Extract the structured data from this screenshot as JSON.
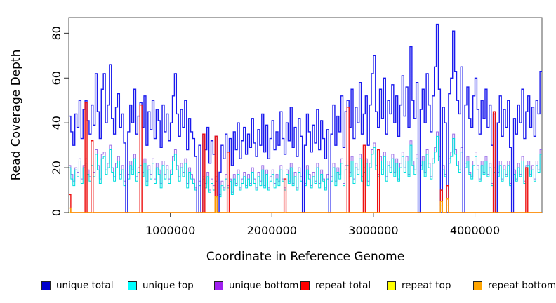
{
  "chart_data": {
    "type": "line",
    "title": "",
    "xlabel": "Coordinate in Reference Genome",
    "ylabel": "Read Coverage Depth",
    "xlim": [
      0,
      4660000
    ],
    "ylim": [
      0,
      87
    ],
    "bin_size": 20000,
    "interpolation": "step-after",
    "grid": false,
    "legend_position": "bottom",
    "x_ticks": [
      1000000,
      2000000,
      3000000,
      4000000
    ],
    "x_tick_labels": [
      "1000000",
      "2000000",
      "3000000",
      "4000000"
    ],
    "y_ticks": [
      0,
      20,
      40,
      60,
      80
    ],
    "y_tick_labels": [
      "0",
      "20",
      "40",
      "60",
      "80"
    ],
    "draw_order": [
      2,
      1,
      0,
      3,
      4,
      5
    ],
    "series": [
      {
        "name": "unique total",
        "slug": "unique-total",
        "color": "#1a1aee",
        "legend_color": "#0000cd",
        "width": 1.4,
        "values": [
          43,
          36,
          30,
          44,
          38,
          50,
          33,
          46,
          50,
          41,
          35,
          48,
          39,
          62,
          45,
          33,
          55,
          62,
          40,
          48,
          66,
          42,
          35,
          47,
          53,
          38,
          44,
          31,
          0,
          36,
          48,
          40,
          55,
          35,
          43,
          49,
          38,
          52,
          30,
          45,
          37,
          50,
          33,
          46,
          41,
          29,
          48,
          36,
          44,
          32,
          40,
          52,
          62,
          44,
          34,
          46,
          38,
          50,
          28,
          42,
          36,
          33,
          25,
          0,
          30,
          0,
          35,
          28,
          38,
          22,
          32,
          26,
          34,
          0,
          18,
          30,
          24,
          35,
          27,
          33,
          21,
          36,
          28,
          40,
          24,
          32,
          38,
          26,
          35,
          29,
          42,
          31,
          25,
          37,
          30,
          44,
          27,
          39,
          24,
          33,
          41,
          28,
          36,
          30,
          45,
          33,
          26,
          40,
          32,
          47,
          29,
          38,
          25,
          42,
          34,
          0,
          30,
          44,
          36,
          27,
          39,
          31,
          46,
          28,
          41,
          33,
          24,
          37,
          0,
          35,
          48,
          30,
          43,
          36,
          52,
          29,
          45,
          50,
          38,
          55,
          33,
          47,
          40,
          58,
          35,
          44,
          52,
          30,
          48,
          62,
          70,
          45,
          38,
          55,
          42,
          60,
          35,
          50,
          44,
          57,
          40,
          52,
          34,
          48,
          61,
          43,
          56,
          38,
          74,
          50,
          42,
          58,
          0,
          46,
          55,
          40,
          62,
          48,
          36,
          52,
          65,
          84,
          55,
          0,
          47,
          40,
          0,
          53,
          60,
          81,
          63,
          50,
          44,
          65,
          0,
          48,
          56,
          42,
          38,
          52,
          60,
          46,
          35,
          50,
          42,
          55,
          38,
          48,
          30,
          44,
          0,
          40,
          52,
          34,
          46,
          38,
          50,
          29,
          0,
          42,
          35,
          48,
          40,
          55,
          33,
          45,
          52,
          38,
          47,
          34,
          50,
          44,
          63
        ]
      },
      {
        "name": "unique top",
        "slug": "unique-top",
        "color": "#00dede",
        "legend_color": "#00ffff",
        "width": 1,
        "values": [
          20,
          15,
          12,
          19,
          16,
          23,
          13,
          20,
          22,
          17,
          14,
          21,
          16,
          26,
          19,
          13,
          24,
          25,
          17,
          20,
          28,
          18,
          14,
          20,
          23,
          15,
          19,
          12,
          0,
          15,
          21,
          17,
          24,
          14,
          18,
          21,
          16,
          22,
          12,
          19,
          15,
          22,
          13,
          20,
          17,
          11,
          21,
          15,
          19,
          13,
          17,
          23,
          26,
          19,
          14,
          20,
          16,
          22,
          11,
          18,
          15,
          13,
          10,
          0,
          12,
          0,
          15,
          11,
          16,
          9,
          13,
          10,
          14,
          0,
          7,
          12,
          10,
          15,
          11,
          14,
          8,
          15,
          12,
          17,
          10,
          13,
          16,
          11,
          15,
          12,
          18,
          13,
          10,
          16,
          12,
          19,
          11,
          17,
          10,
          14,
          17,
          11,
          15,
          12,
          19,
          14,
          10,
          17,
          13,
          20,
          12,
          16,
          10,
          18,
          14,
          0,
          12,
          19,
          15,
          11,
          16,
          13,
          20,
          11,
          17,
          14,
          10,
          15,
          0,
          14,
          20,
          12,
          18,
          15,
          22,
          12,
          19,
          21,
          16,
          23,
          13,
          20,
          17,
          24,
          14,
          18,
          22,
          12,
          20,
          26,
          29,
          19,
          16,
          23,
          17,
          25,
          14,
          21,
          18,
          24,
          16,
          22,
          14,
          20,
          25,
          18,
          23,
          16,
          30,
          21,
          17,
          24,
          0,
          19,
          23,
          16,
          26,
          20,
          15,
          22,
          27,
          34,
          23,
          0,
          19,
          16,
          0,
          22,
          25,
          33,
          26,
          21,
          18,
          27,
          0,
          20,
          23,
          17,
          15,
          21,
          25,
          19,
          14,
          21,
          17,
          23,
          16,
          20,
          12,
          18,
          0,
          16,
          21,
          14,
          19,
          16,
          21,
          12,
          0,
          17,
          14,
          20,
          16,
          23,
          13,
          19,
          21,
          16,
          19,
          14,
          21,
          18,
          26
        ]
      },
      {
        "name": "unique bottom",
        "slug": "unique-bottom",
        "color": "#9a6fe8",
        "legend_color": "#a020f0",
        "width": 1,
        "values": [
          21,
          17,
          14,
          20,
          18,
          24,
          15,
          21,
          24,
          19,
          16,
          23,
          18,
          28,
          21,
          15,
          26,
          27,
          19,
          22,
          30,
          20,
          16,
          22,
          25,
          17,
          21,
          14,
          0,
          17,
          23,
          19,
          26,
          16,
          20,
          23,
          18,
          24,
          14,
          21,
          17,
          24,
          15,
          22,
          19,
          13,
          23,
          17,
          21,
          15,
          19,
          25,
          28,
          21,
          16,
          22,
          18,
          24,
          13,
          20,
          17,
          15,
          11,
          0,
          14,
          0,
          16,
          13,
          18,
          10,
          15,
          12,
          16,
          0,
          8,
          14,
          11,
          17,
          12,
          15,
          9,
          17,
          13,
          19,
          11,
          15,
          18,
          12,
          17,
          13,
          20,
          15,
          11,
          18,
          14,
          21,
          12,
          19,
          11,
          16,
          19,
          13,
          17,
          14,
          21,
          15,
          11,
          19,
          14,
          22,
          13,
          18,
          11,
          20,
          16,
          0,
          13,
          21,
          17,
          12,
          18,
          14,
          22,
          13,
          19,
          15,
          11,
          17,
          0,
          16,
          22,
          14,
          20,
          17,
          24,
          13,
          21,
          23,
          18,
          25,
          15,
          22,
          19,
          26,
          16,
          20,
          24,
          14,
          22,
          28,
          31,
          21,
          17,
          25,
          19,
          27,
          16,
          23,
          20,
          26,
          18,
          24,
          15,
          22,
          27,
          20,
          25,
          17,
          32,
          23,
          19,
          26,
          0,
          21,
          25,
          18,
          28,
          22,
          16,
          24,
          29,
          36,
          25,
          0,
          21,
          17,
          0,
          24,
          27,
          35,
          28,
          23,
          19,
          29,
          0,
          22,
          25,
          18,
          16,
          23,
          27,
          21,
          15,
          23,
          18,
          25,
          17,
          22,
          13,
          20,
          0,
          18,
          23,
          15,
          21,
          17,
          23,
          13,
          0,
          19,
          15,
          22,
          17,
          25,
          14,
          21,
          23,
          17,
          21,
          15,
          23,
          19,
          28
        ]
      },
      {
        "name": "repeat total",
        "slug": "repeat-total",
        "color": "#ee1111",
        "legend_color": "#ff0000",
        "width": 1.4,
        "length": 233,
        "values_sparse": {
          "0": 8,
          "8": 49,
          "11": 32,
          "35": 48,
          "66": 35,
          "72": 34,
          "78": 27,
          "106": 15,
          "137": 47,
          "145": 30,
          "152": 28,
          "183": 10,
          "186": 12,
          "209": 45,
          "225": 20
        }
      },
      {
        "name": "repeat top",
        "slug": "repeat-top",
        "color": "#f0f000",
        "legend_color": "#ffff00",
        "width": 1,
        "length": 233,
        "values_sparse": {
          "183": 3,
          "186": 3
        }
      },
      {
        "name": "repeat bottom",
        "slug": "repeat-bottom",
        "color": "#ff9f00",
        "legend_color": "#ffa500",
        "width": 1.4,
        "length": 233,
        "values_sparse": {
          "0": 2,
          "72": 7,
          "183": 5,
          "186": 6
        }
      }
    ]
  }
}
